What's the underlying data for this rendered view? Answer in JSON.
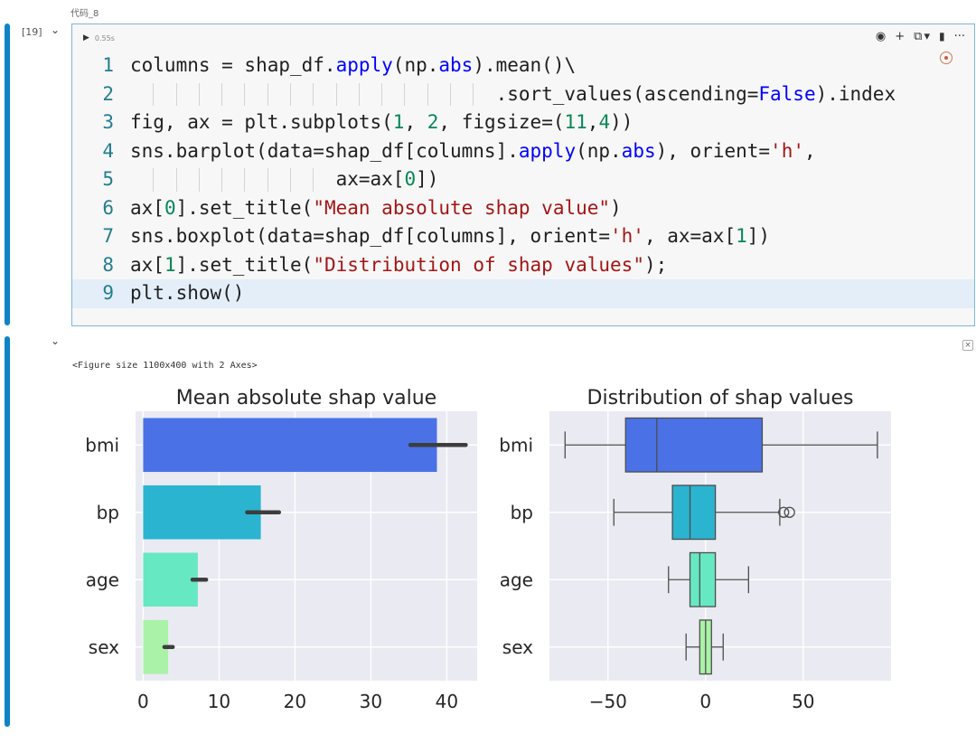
{
  "cell": {
    "name": "代码_8",
    "execution_count": "[19]",
    "run_time": "0.55s",
    "toolbar": {
      "icons": [
        "eye-icon",
        "plus-icon",
        "copy-icon",
        "chevron-down-icon",
        "trash-icon",
        "more-icon"
      ],
      "glyphs": [
        "◉",
        "+",
        "⧉",
        "▾",
        "🗑",
        "···"
      ]
    },
    "code_lines": [
      {
        "n": "1",
        "text": "columns = shap_df.apply(np.abs).mean()\\"
      },
      {
        "n": "2",
        "text": "                                .sort_values(ascending=False).index"
      },
      {
        "n": "3",
        "text": "fig, ax = plt.subplots(1, 2, figsize=(11,4))"
      },
      {
        "n": "4",
        "text": "sns.barplot(data=shap_df[columns].apply(np.abs), orient='h',"
      },
      {
        "n": "5",
        "text": "                  ax=ax[0])"
      },
      {
        "n": "6",
        "text": "ax[0].set_title(\"Mean absolute shap value\")"
      },
      {
        "n": "7",
        "text": "sns.boxplot(data=shap_df[columns], orient='h', ax=ax[1])"
      },
      {
        "n": "8",
        "text": "ax[1].set_title(\"Distribution of shap values\");"
      },
      {
        "n": "9",
        "text": "plt.show()"
      }
    ]
  },
  "output": {
    "figure_text": "<Figure size 1100x400 with 2 Axes>"
  },
  "chart_data": [
    {
      "type": "bar",
      "orientation": "horizontal",
      "title": "Mean absolute shap value",
      "categories": [
        "bmi",
        "bp",
        "age",
        "sex"
      ],
      "values": [
        38.7,
        15.5,
        7.2,
        3.3
      ],
      "error_bars": [
        [
          35.2,
          42.5
        ],
        [
          13.7,
          17.9
        ],
        [
          6.5,
          8.3
        ],
        [
          2.8,
          3.9
        ]
      ],
      "colors": [
        "#4a72e6",
        "#2ab4d0",
        "#66e8c3",
        "#a9f2a8"
      ],
      "xlim": [
        -1,
        44
      ],
      "xticks": [
        0,
        10,
        20,
        30,
        40
      ],
      "grid": true,
      "background": "#eaeaf2"
    },
    {
      "type": "box",
      "orientation": "horizontal",
      "title": "Distribution of shap values",
      "categories": [
        "bmi",
        "bp",
        "age",
        "sex"
      ],
      "boxes": [
        {
          "whisker_low": -72,
          "q1": -41,
          "median": -25,
          "q3": 29,
          "whisker_high": 88,
          "outliers": []
        },
        {
          "whisker_low": -47,
          "q1": -17,
          "median": -8,
          "q3": 5,
          "whisker_high": 38,
          "outliers": [
            40,
            43
          ]
        },
        {
          "whisker_low": -19,
          "q1": -8,
          "median": -3,
          "q3": 5,
          "whisker_high": 22,
          "outliers": []
        },
        {
          "whisker_low": -10,
          "q1": -3,
          "median": 0,
          "q3": 3,
          "whisker_high": 9,
          "outliers": []
        }
      ],
      "colors": [
        "#4a72e6",
        "#2ab4d0",
        "#66e8c3",
        "#a9f2a8"
      ],
      "xlim": [
        -80,
        95
      ],
      "xticks": [
        -50,
        0,
        50
      ],
      "xtick_labels": [
        "−50",
        "0",
        "50"
      ],
      "grid": true,
      "background": "#eaeaf2"
    }
  ]
}
